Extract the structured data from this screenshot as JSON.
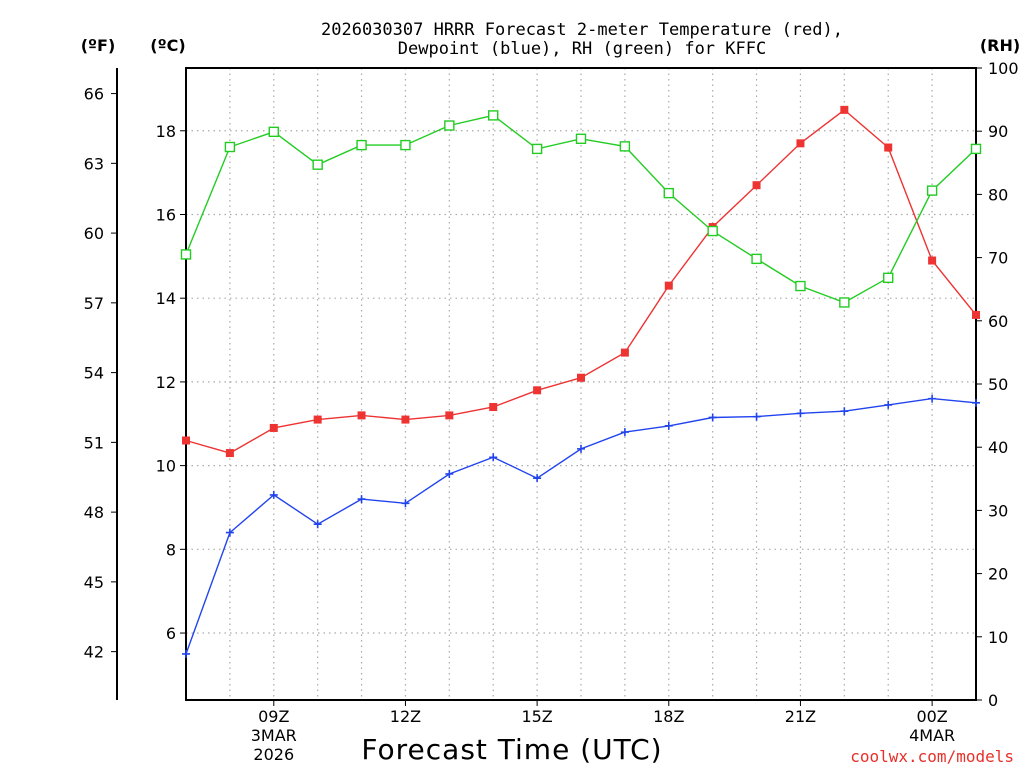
{
  "chart_data": {
    "type": "line",
    "title_line1": "2026030307 HRRR Forecast 2-meter Temperature (red),",
    "title_line2": "Dewpoint (blue), RH (green) for KFFC",
    "xlabel": "Forecast Time (UTC)",
    "credit": "coolwx.com/models",
    "unit_left_f": "(ºF)",
    "unit_left_c": "(ºC)",
    "unit_right": "(RH)",
    "x_hours": [
      7,
      8,
      9,
      10,
      11,
      12,
      13,
      14,
      15,
      16,
      17,
      18,
      19,
      20,
      21,
      22,
      23,
      24,
      25
    ],
    "xlim": [
      7,
      25
    ],
    "ylim_c": [
      4.4,
      19.5
    ],
    "ylim_rh": [
      0,
      100
    ],
    "x_ticks": [
      {
        "h": 9,
        "label": "09Z",
        "date1": "3MAR",
        "date2": "2026"
      },
      {
        "h": 12,
        "label": "12Z",
        "date1": "",
        "date2": ""
      },
      {
        "h": 15,
        "label": "15Z",
        "date1": "",
        "date2": ""
      },
      {
        "h": 18,
        "label": "18Z",
        "date1": "",
        "date2": ""
      },
      {
        "h": 21,
        "label": "21Z",
        "date1": "",
        "date2": ""
      },
      {
        "h": 24,
        "label": "00Z",
        "date1": "4MAR",
        "date2": ""
      }
    ],
    "c_ticks": [
      6,
      8,
      10,
      12,
      14,
      16,
      18
    ],
    "f_ticks": [
      42,
      45,
      48,
      51,
      54,
      57,
      60,
      63,
      66
    ],
    "rh_ticks": [
      0,
      10,
      20,
      30,
      40,
      50,
      60,
      70,
      80,
      90,
      100
    ],
    "grid": true,
    "series": [
      {
        "name": "Temperature",
        "unit": "C",
        "color": "#ee3333",
        "marker": "filled-square",
        "values": [
          10.6,
          10.3,
          10.9,
          11.1,
          11.2,
          11.1,
          11.2,
          11.4,
          11.8,
          12.1,
          12.7,
          14.3,
          15.7,
          16.7,
          17.7,
          18.5,
          17.6,
          14.9,
          13.6
        ]
      },
      {
        "name": "Dewpoint",
        "unit": "C",
        "color": "#2244ee",
        "marker": "plus",
        "values": [
          5.5,
          8.4,
          9.3,
          8.6,
          9.2,
          9.1,
          9.8,
          10.2,
          9.7,
          10.4,
          10.8,
          10.95,
          11.15,
          11.17,
          11.25,
          11.3,
          11.45,
          11.6,
          11.5
        ]
      },
      {
        "name": "RH",
        "unit": "%",
        "color": "#22cc22",
        "marker": "open-square",
        "values": [
          70.5,
          87.5,
          89.9,
          84.7,
          87.8,
          87.8,
          90.9,
          92.5,
          87.2,
          88.8,
          87.6,
          80.2,
          74.2,
          69.8,
          65.5,
          62.9,
          66.8,
          80.6,
          87.2
        ]
      }
    ]
  }
}
